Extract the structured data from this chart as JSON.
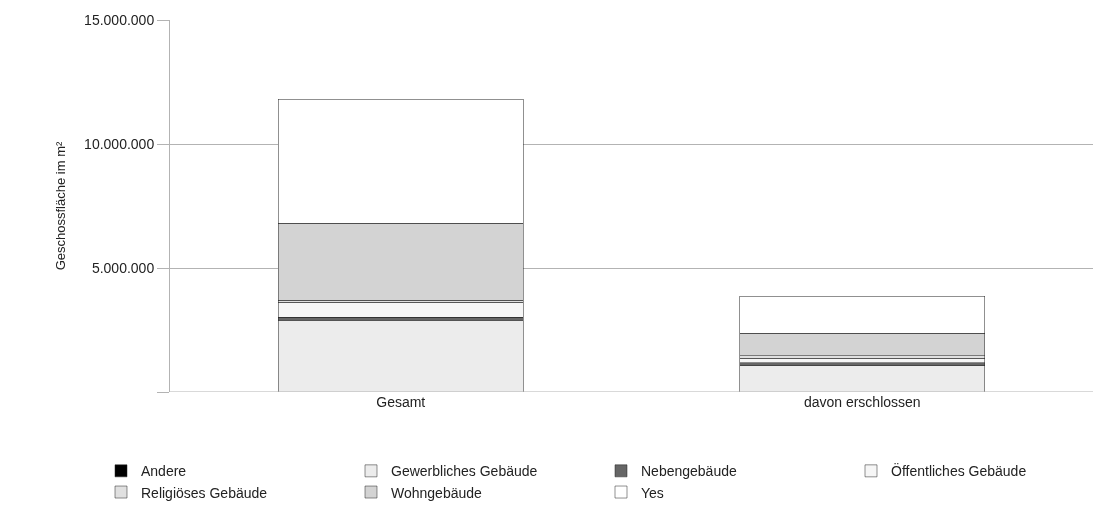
{
  "chart_data": {
    "type": "bar",
    "stacked": true,
    "ylabel": "Geschossfläche im m²",
    "categories": [
      "Gesamt",
      "davon erschlossen"
    ],
    "series": [
      {
        "name": "Andere",
        "color": "#000000",
        "values": [
          null,
          null
        ]
      },
      {
        "name": "Gewerbliches Gebäude",
        "color": "#ececec",
        "values": [
          2900000,
          1050000
        ]
      },
      {
        "name": "Nebengebäude",
        "color": "#666666",
        "values": [
          120000,
          120000
        ]
      },
      {
        "name": "Öffentliches Gebäude",
        "color": "#f6f6f6",
        "values": [
          600000,
          200000
        ]
      },
      {
        "name": "Religiöses Gebäude",
        "color": "#e0e0e0",
        "values": [
          80000,
          100000
        ]
      },
      {
        "name": "Wohngebäude",
        "color": "#d3d3d3",
        "values": [
          3100000,
          900000
        ]
      },
      {
        "name": "Yes",
        "color": "#ffffff",
        "values": [
          5000000,
          1500000
        ]
      }
    ],
    "ylim": [
      0,
      15000000
    ],
    "yticks": [
      {
        "value": 0,
        "label": null
      },
      {
        "value": 5000000,
        "label": "5.000.000"
      },
      {
        "value": 10000000,
        "label": "10.000.000"
      },
      {
        "value": 15000000,
        "label": "15.000.000"
      }
    ],
    "grid": "y",
    "legend": "bottom"
  }
}
